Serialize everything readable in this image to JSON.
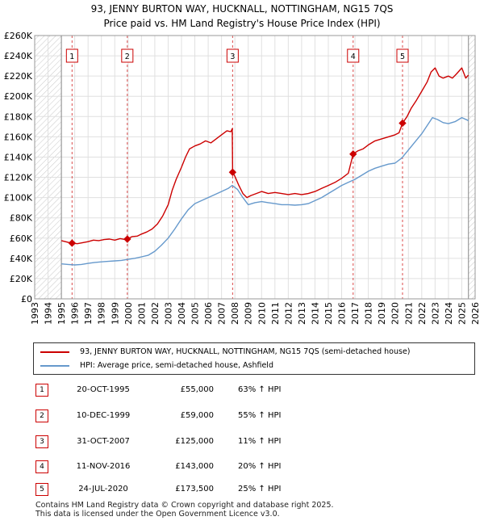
{
  "title_line1": "93, JENNY BURTON WAY, HUCKNALL, NOTTINGHAM, NG15 7QS",
  "title_line2": "Price paid vs. HM Land Registry's House Price Index (HPI)",
  "chart_data": {
    "type": "line",
    "ylim": [
      0,
      260000
    ],
    "xlim": [
      1993,
      2026
    ],
    "yticks": [
      {
        "value": 0,
        "label": "£0"
      },
      {
        "value": 20000,
        "label": "£20K"
      },
      {
        "value": 40000,
        "label": "£40K"
      },
      {
        "value": 60000,
        "label": "£60K"
      },
      {
        "value": 80000,
        "label": "£80K"
      },
      {
        "value": 100000,
        "label": "£100K"
      },
      {
        "value": 120000,
        "label": "£120K"
      },
      {
        "value": 140000,
        "label": "£140K"
      },
      {
        "value": 160000,
        "label": "£160K"
      },
      {
        "value": 180000,
        "label": "£180K"
      },
      {
        "value": 200000,
        "label": "£200K"
      },
      {
        "value": 220000,
        "label": "£220K"
      },
      {
        "value": 240000,
        "label": "£240K"
      },
      {
        "value": 260000,
        "label": "£260K"
      }
    ],
    "xticks": [
      "1993",
      "1994",
      "1995",
      "1996",
      "1997",
      "1998",
      "1999",
      "2000",
      "2001",
      "2002",
      "2003",
      "2004",
      "2005",
      "2006",
      "2007",
      "2008",
      "2009",
      "2010",
      "2011",
      "2012",
      "2013",
      "2014",
      "2015",
      "2016",
      "2017",
      "2018",
      "2019",
      "2020",
      "2021",
      "2022",
      "2023",
      "2024",
      "2025",
      "2026"
    ],
    "hatch_before": 1995.0,
    "hatch_after": 2025.5,
    "series": [
      {
        "name": "93, JENNY BURTON WAY, HUCKNALL, NOTTINGHAM, NG15 7QS (semi-detached house)",
        "color": "#cc0000",
        "points": [
          [
            1995.0,
            57500
          ],
          [
            1995.3,
            56500
          ],
          [
            1995.6,
            55500
          ],
          [
            1995.8,
            55000
          ],
          [
            1996.2,
            54500
          ],
          [
            1996.6,
            55500
          ],
          [
            1997.0,
            56500
          ],
          [
            1997.4,
            58000
          ],
          [
            1997.8,
            57500
          ],
          [
            1998.2,
            58500
          ],
          [
            1998.6,
            59000
          ],
          [
            1999.0,
            58000
          ],
          [
            1999.4,
            59500
          ],
          [
            1999.8,
            58500
          ],
          [
            1999.94,
            59000
          ],
          [
            2000.3,
            61500
          ],
          [
            2000.7,
            62000
          ],
          [
            2001.0,
            64000
          ],
          [
            2001.4,
            66000
          ],
          [
            2001.8,
            69000
          ],
          [
            2002.2,
            74000
          ],
          [
            2002.6,
            82000
          ],
          [
            2003.0,
            93000
          ],
          [
            2003.3,
            107000
          ],
          [
            2003.6,
            118000
          ],
          [
            2004.0,
            130000
          ],
          [
            2004.3,
            140000
          ],
          [
            2004.6,
            148000
          ],
          [
            2005.0,
            151000
          ],
          [
            2005.4,
            153000
          ],
          [
            2005.8,
            156000
          ],
          [
            2006.2,
            154000
          ],
          [
            2006.6,
            158000
          ],
          [
            2007.0,
            162000
          ],
          [
            2007.4,
            166000
          ],
          [
            2007.7,
            165000
          ],
          [
            2007.8,
            168000
          ],
          [
            2007.83,
            125000
          ],
          [
            2008.0,
            121000
          ],
          [
            2008.3,
            112000
          ],
          [
            2008.6,
            104000
          ],
          [
            2008.9,
            100000
          ],
          [
            2009.2,
            102000
          ],
          [
            2009.6,
            104000
          ],
          [
            2010.0,
            106000
          ],
          [
            2010.5,
            104000
          ],
          [
            2011.0,
            105000
          ],
          [
            2011.5,
            104000
          ],
          [
            2012.0,
            103000
          ],
          [
            2012.5,
            104000
          ],
          [
            2013.0,
            103000
          ],
          [
            2013.5,
            104000
          ],
          [
            2014.0,
            106000
          ],
          [
            2014.5,
            109000
          ],
          [
            2015.0,
            112000
          ],
          [
            2015.5,
            115000
          ],
          [
            2016.0,
            119000
          ],
          [
            2016.5,
            124000
          ],
          [
            2016.86,
            143000
          ],
          [
            2017.2,
            146000
          ],
          [
            2017.6,
            148000
          ],
          [
            2018.0,
            152000
          ],
          [
            2018.5,
            156000
          ],
          [
            2019.0,
            158000
          ],
          [
            2019.5,
            160000
          ],
          [
            2020.0,
            162000
          ],
          [
            2020.3,
            164000
          ],
          [
            2020.56,
            173500
          ],
          [
            2020.9,
            180000
          ],
          [
            2021.2,
            188000
          ],
          [
            2021.6,
            196000
          ],
          [
            2022.0,
            205000
          ],
          [
            2022.4,
            214000
          ],
          [
            2022.7,
            224000
          ],
          [
            2023.0,
            228000
          ],
          [
            2023.3,
            220000
          ],
          [
            2023.6,
            218000
          ],
          [
            2024.0,
            220000
          ],
          [
            2024.3,
            218000
          ],
          [
            2024.6,
            222000
          ],
          [
            2025.0,
            228000
          ],
          [
            2025.3,
            218000
          ],
          [
            2025.5,
            221000
          ]
        ]
      },
      {
        "name": "HPI: Average price, semi-detached house, Ashfield",
        "color": "#6699cc",
        "points": [
          [
            1995.0,
            34500
          ],
          [
            1995.5,
            34000
          ],
          [
            1996.0,
            33500
          ],
          [
            1996.5,
            34000
          ],
          [
            1997.0,
            35000
          ],
          [
            1997.5,
            36000
          ],
          [
            1998.0,
            36500
          ],
          [
            1998.5,
            37000
          ],
          [
            1999.0,
            37500
          ],
          [
            1999.5,
            38000
          ],
          [
            2000.0,
            39000
          ],
          [
            2000.5,
            40000
          ],
          [
            2001.0,
            41500
          ],
          [
            2001.5,
            43000
          ],
          [
            2002.0,
            47000
          ],
          [
            2002.5,
            53000
          ],
          [
            2003.0,
            60000
          ],
          [
            2003.5,
            69000
          ],
          [
            2004.0,
            79000
          ],
          [
            2004.5,
            88000
          ],
          [
            2005.0,
            94000
          ],
          [
            2005.5,
            97000
          ],
          [
            2006.0,
            100000
          ],
          [
            2006.5,
            103000
          ],
          [
            2007.0,
            106000
          ],
          [
            2007.5,
            109000
          ],
          [
            2007.8,
            112000
          ],
          [
            2008.2,
            108000
          ],
          [
            2008.6,
            100000
          ],
          [
            2009.0,
            93000
          ],
          [
            2009.5,
            95000
          ],
          [
            2010.0,
            96000
          ],
          [
            2010.5,
            95000
          ],
          [
            2011.0,
            94000
          ],
          [
            2011.5,
            93000
          ],
          [
            2012.0,
            93000
          ],
          [
            2012.5,
            92500
          ],
          [
            2013.0,
            93000
          ],
          [
            2013.5,
            94000
          ],
          [
            2014.0,
            97000
          ],
          [
            2014.5,
            100000
          ],
          [
            2015.0,
            104000
          ],
          [
            2015.5,
            108000
          ],
          [
            2016.0,
            112000
          ],
          [
            2016.5,
            115000
          ],
          [
            2017.0,
            118000
          ],
          [
            2017.5,
            122000
          ],
          [
            2018.0,
            126000
          ],
          [
            2018.5,
            129000
          ],
          [
            2019.0,
            131000
          ],
          [
            2019.5,
            133000
          ],
          [
            2020.0,
            134000
          ],
          [
            2020.5,
            139000
          ],
          [
            2021.0,
            147000
          ],
          [
            2021.5,
            155000
          ],
          [
            2022.0,
            163000
          ],
          [
            2022.5,
            173000
          ],
          [
            2022.8,
            179000
          ],
          [
            2023.2,
            177000
          ],
          [
            2023.6,
            174000
          ],
          [
            2024.0,
            173000
          ],
          [
            2024.5,
            175000
          ],
          [
            2025.0,
            179000
          ],
          [
            2025.5,
            176000
          ]
        ]
      }
    ],
    "sales": [
      {
        "num": "1",
        "x": 1995.8,
        "price": 55000
      },
      {
        "num": "2",
        "x": 1999.94,
        "price": 59000
      },
      {
        "num": "3",
        "x": 2007.83,
        "price": 125000
      },
      {
        "num": "4",
        "x": 2016.86,
        "price": 143000
      },
      {
        "num": "5",
        "x": 2020.56,
        "price": 173500
      }
    ]
  },
  "legend": {
    "red_label": "93, JENNY BURTON WAY, HUCKNALL, NOTTINGHAM, NG15 7QS (semi-detached house)",
    "blue_label": "HPI: Average price, semi-detached house, Ashfield",
    "red_color": "#cc0000",
    "blue_color": "#6699cc"
  },
  "sales_table": [
    {
      "num": "1",
      "date": "20-OCT-1995",
      "price": "£55,000",
      "hpi": "63% ↑ HPI"
    },
    {
      "num": "2",
      "date": "10-DEC-1999",
      "price": "£59,000",
      "hpi": "55% ↑ HPI"
    },
    {
      "num": "3",
      "date": "31-OCT-2007",
      "price": "£125,000",
      "hpi": "11% ↑ HPI"
    },
    {
      "num": "4",
      "date": "11-NOV-2016",
      "price": "£143,000",
      "hpi": "20% ↑ HPI"
    },
    {
      "num": "5",
      "date": "24-JUL-2020",
      "price": "£173,500",
      "hpi": "25% ↑ HPI"
    }
  ],
  "footer_line1": "Contains HM Land Registry data © Crown copyright and database right 2025.",
  "footer_line2": "This data is licensed under the Open Government Licence v3.0."
}
